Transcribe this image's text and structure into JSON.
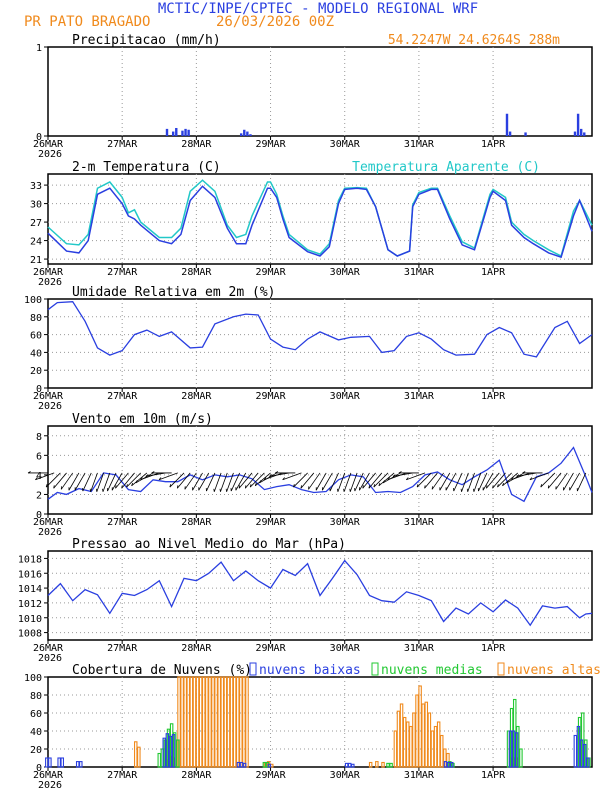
{
  "header": {
    "title": "MCTIC/INPE/CPTEC - MODELO REGIONAL WRF",
    "location": "PR PATO BRAGADO",
    "run": "26/03/2026 00Z",
    "coords": "54.2247W 24.6264S 288m"
  },
  "colors": {
    "title": "#2a3fe0",
    "orange": "#f08a1c",
    "blue": "#2a3fe0",
    "cyan": "#22c8c8",
    "green": "#22c832",
    "grid": "#9a9a9a"
  },
  "date_labels": [
    "26MAR",
    "27MAR",
    "28MAR",
    "29MAR",
    "30MAR",
    "31MAR",
    "1APR"
  ],
  "year_label": "2026",
  "chart_data": [
    {
      "id": "precip",
      "type": "bar",
      "title": "Precipitacao (mm/h)",
      "ylim": [
        0,
        1
      ],
      "yticks": [
        "0",
        "1"
      ],
      "x_hours": [
        38.5,
        40.5,
        41.5,
        43.5,
        44.5,
        45.5,
        62.5,
        63.5,
        64.5,
        65.5,
        148.5,
        149.5,
        154.5,
        170.5,
        171.5,
        172.5,
        173.5
      ],
      "values": [
        0.08,
        0.05,
        0.09,
        0.06,
        0.08,
        0.07,
        0.03,
        0.07,
        0.05,
        0.02,
        0.25,
        0.05,
        0.04,
        0.05,
        0.25,
        0.08,
        0.04
      ]
    },
    {
      "id": "temp",
      "type": "line",
      "title": "2-m Temperatura (C)",
      "legend": "Temperatura Aparente (C)",
      "ylim": [
        20.2,
        34.8
      ],
      "yticks": [
        "21",
        "24",
        "27",
        "30",
        "33"
      ],
      "hours": [
        0,
        6,
        10,
        13,
        16,
        20,
        24,
        26,
        28,
        30,
        36,
        40,
        43,
        46,
        50,
        54,
        58,
        61,
        64,
        66,
        71,
        72,
        74,
        76,
        78,
        84,
        88,
        91,
        94,
        96,
        100,
        103,
        106,
        110,
        113,
        117,
        118,
        120,
        124,
        126,
        130,
        134,
        138,
        143,
        144,
        148,
        150,
        154,
        157,
        162,
        166,
        170,
        172,
        176
      ],
      "series": [
        {
          "name": "2-m Temperatura",
          "values": [
            25.2,
            22.3,
            22.0,
            24.0,
            31.5,
            32.5,
            30.0,
            28.0,
            27.5,
            26.5,
            24.0,
            23.5,
            25.0,
            30.5,
            32.8,
            31.0,
            26.0,
            23.5,
            23.5,
            26.5,
            32.5,
            32.5,
            31.0,
            27.5,
            24.5,
            22.2,
            21.5,
            23.0,
            30.0,
            32.3,
            32.5,
            32.3,
            29.5,
            22.5,
            21.5,
            22.3,
            29.5,
            31.5,
            32.3,
            32.3,
            27.5,
            23.3,
            22.5,
            31.0,
            32.0,
            30.5,
            26.5,
            24.5,
            23.5,
            22.0,
            21.3,
            28.0,
            30.5,
            25.5
          ]
        },
        {
          "name": "Temperatura Aparente",
          "values": [
            26.2,
            23.5,
            23.3,
            25.0,
            32.5,
            33.5,
            31.0,
            28.5,
            29.0,
            27.0,
            24.5,
            24.5,
            26.0,
            32.0,
            33.8,
            32.0,
            26.5,
            24.5,
            25.0,
            28.0,
            33.5,
            33.5,
            31.5,
            28.0,
            25.0,
            22.5,
            21.8,
            23.5,
            30.5,
            32.5,
            32.6,
            32.5,
            29.5,
            22.5,
            21.5,
            22.3,
            29.8,
            31.8,
            32.5,
            32.5,
            28.0,
            23.8,
            22.8,
            31.5,
            32.3,
            31.0,
            27.0,
            25.0,
            24.0,
            22.5,
            21.5,
            28.8,
            30.5,
            26.5
          ]
        }
      ]
    },
    {
      "id": "rh",
      "type": "line",
      "title": "Umidade Relativa em 2m (%)",
      "ylim": [
        0,
        100
      ],
      "yticks": [
        "0",
        "20",
        "40",
        "60",
        "80",
        "100"
      ],
      "hours": [
        0,
        3,
        8,
        12,
        16,
        20,
        24,
        28,
        32,
        36,
        40,
        46,
        50,
        54,
        60,
        64,
        68,
        72,
        76,
        80,
        84,
        88,
        94,
        98,
        104,
        108,
        112,
        116,
        120,
        124,
        128,
        132,
        138,
        142,
        146,
        150,
        154,
        158,
        164,
        168,
        172,
        176
      ],
      "values": [
        88,
        96,
        97,
        75,
        45,
        37,
        42,
        60,
        65,
        58,
        63,
        45,
        46,
        72,
        80,
        83,
        82,
        55,
        46,
        43,
        55,
        63,
        54,
        57,
        58,
        40,
        42,
        58,
        62,
        55,
        43,
        37,
        38,
        60,
        68,
        62,
        38,
        35,
        68,
        75,
        50,
        60
      ]
    },
    {
      "id": "wind",
      "type": "line",
      "title": "Vento em 10m (m/s)",
      "ylim": [
        0,
        9
      ],
      "yticks": [
        "0",
        "2",
        "4",
        "6",
        "8"
      ],
      "hours": [
        0,
        3,
        6,
        10,
        14,
        18,
        22,
        26,
        30,
        34,
        38,
        42,
        46,
        50,
        54,
        58,
        62,
        66,
        70,
        74,
        78,
        82,
        86,
        90,
        94,
        98,
        102,
        106,
        110,
        114,
        118,
        122,
        126,
        130,
        134,
        138,
        142,
        146,
        150,
        154,
        158,
        162,
        166,
        170,
        174,
        176
      ],
      "values": [
        1.5,
        2.2,
        2.0,
        2.6,
        2.3,
        4.2,
        4.0,
        2.5,
        2.3,
        3.5,
        3.3,
        3.3,
        4.0,
        3.5,
        4.0,
        3.8,
        4.0,
        3.6,
        2.5,
        2.8,
        3.0,
        2.5,
        2.2,
        2.3,
        3.5,
        4.0,
        3.8,
        2.2,
        2.3,
        2.2,
        2.8,
        4.0,
        4.3,
        3.5,
        3.0,
        3.8,
        4.5,
        5.5,
        2.0,
        1.3,
        3.8,
        4.2,
        5.2,
        6.8,
        3.8,
        2.2
      ],
      "barb_hours": [
        0,
        2,
        4,
        6,
        8,
        10,
        12,
        14,
        16,
        18,
        20,
        22,
        24,
        26,
        28,
        30,
        32,
        34,
        36,
        38,
        40,
        42,
        44,
        46,
        48,
        50,
        52,
        54,
        56,
        58,
        60,
        62,
        64,
        66,
        68,
        70,
        72,
        74,
        76,
        78,
        80,
        82,
        84,
        86,
        88,
        90,
        92,
        94,
        96,
        98,
        100,
        102,
        104,
        106,
        108,
        110,
        112,
        114,
        116,
        118,
        120,
        122,
        124,
        126,
        128,
        130,
        132,
        134,
        136,
        138,
        140,
        142,
        144,
        146,
        148,
        150,
        152,
        154,
        156,
        158,
        160,
        162,
        164,
        166,
        168,
        170,
        172,
        174
      ],
      "barb_dirs": [
        180,
        160,
        135,
        130,
        125,
        120,
        120,
        115,
        110,
        110,
        110,
        115,
        120,
        130,
        130,
        135,
        140,
        150,
        160,
        170,
        180,
        160,
        135,
        130,
        125,
        120,
        120,
        115,
        110,
        110,
        110,
        115,
        120,
        130,
        130,
        135,
        140,
        150,
        160,
        170,
        180,
        160,
        135,
        130,
        125,
        120,
        120,
        115,
        110,
        110,
        110,
        115,
        120,
        130,
        130,
        135,
        140,
        150,
        160,
        170,
        180,
        160,
        135,
        130,
        125,
        120,
        120,
        115,
        110,
        110,
        110,
        115,
        120,
        130,
        130,
        135,
        140,
        150,
        160,
        170,
        180,
        160,
        135,
        130,
        125,
        120,
        120,
        115
      ]
    },
    {
      "id": "pressure",
      "type": "line",
      "title": "Pressao ao Nivel Medio do Mar (hPa)",
      "ylim": [
        1007,
        1019
      ],
      "yticks": [
        "1008",
        "1010",
        "1012",
        "1014",
        "1016",
        "1018"
      ],
      "hours": [
        0,
        4,
        8,
        12,
        16,
        20,
        24,
        28,
        32,
        36,
        40,
        44,
        48,
        52,
        56,
        60,
        64,
        68,
        72,
        76,
        80,
        84,
        88,
        92,
        96,
        100,
        104,
        108,
        112,
        116,
        120,
        124,
        128,
        132,
        136,
        140,
        144,
        148,
        152,
        156,
        160,
        164,
        168,
        172,
        174,
        176
      ],
      "values": [
        1013,
        1014.6,
        1012.3,
        1013.8,
        1013.1,
        1010.6,
        1013.3,
        1013,
        1013.8,
        1015,
        1011.5,
        1015.3,
        1015,
        1016,
        1017.5,
        1015,
        1016.3,
        1015,
        1014,
        1016.5,
        1015.7,
        1017.3,
        1013,
        1015.3,
        1017.7,
        1015.8,
        1013,
        1012.3,
        1012.1,
        1013.5,
        1013,
        1012.3,
        1009.5,
        1011.3,
        1010.5,
        1012,
        1010.8,
        1012.4,
        1011.3,
        1009,
        1011.6,
        1011.3,
        1011.5,
        1010,
        1010.5,
        1010.6
      ]
    },
    {
      "id": "clouds",
      "type": "bar",
      "title": "Cobertura de Nuvens (%)",
      "legend": [
        "nuvens baixas",
        "nuvens medias",
        "nuvens altas"
      ],
      "ylim": [
        0,
        100
      ],
      "yticks": [
        "0",
        "20",
        "40",
        "60",
        "80",
        "100"
      ],
      "series": [
        {
          "name": "nuvens baixas",
          "x_hours": [
            0,
            1,
            4,
            5,
            10,
            11,
            38,
            39,
            40,
            41,
            62,
            63,
            64,
            72,
            97,
            98,
            99,
            129,
            130,
            131,
            150,
            151,
            152,
            171,
            172,
            173,
            174,
            175
          ],
          "values": [
            10,
            10,
            10,
            10,
            6,
            6,
            32,
            37,
            34,
            36,
            5,
            5,
            4,
            3,
            4,
            4,
            3,
            6,
            5,
            5,
            40,
            40,
            38,
            35,
            45,
            30,
            25,
            10
          ]
        },
        {
          "name": "nuvens medias",
          "x_hours": [
            36,
            37,
            38,
            39,
            40,
            41,
            42,
            70,
            71,
            110,
            111,
            130,
            131,
            149,
            150,
            151,
            152,
            153,
            172,
            173,
            174,
            175
          ],
          "values": [
            15,
            20,
            30,
            42,
            48,
            38,
            30,
            5,
            5,
            4,
            4,
            6,
            4,
            40,
            65,
            75,
            45,
            20,
            55,
            60,
            30,
            10
          ]
        },
        {
          "name": "nuvens altas",
          "x_hours": [
            28,
            29,
            38,
            39,
            40,
            42,
            43,
            44,
            45,
            46,
            47,
            48,
            49,
            50,
            51,
            52,
            53,
            54,
            55,
            56,
            57,
            58,
            59,
            60,
            61,
            62,
            63,
            64,
            70,
            71,
            72,
            104,
            106,
            108,
            112,
            113,
            114,
            115,
            116,
            117,
            118,
            119,
            120,
            121,
            122,
            123,
            124,
            125,
            126,
            127,
            128,
            129,
            150,
            151
          ],
          "values": [
            28,
            22,
            8,
            12,
            10,
            100,
            100,
            100,
            100,
            100,
            100,
            100,
            100,
            100,
            100,
            100,
            100,
            100,
            100,
            100,
            100,
            100,
            100,
            100,
            100,
            100,
            100,
            100,
            5,
            6,
            3,
            5,
            6,
            5,
            40,
            62,
            70,
            55,
            50,
            45,
            60,
            80,
            90,
            70,
            72,
            60,
            40,
            45,
            50,
            35,
            20,
            15,
            10,
            10
          ]
        }
      ]
    }
  ]
}
